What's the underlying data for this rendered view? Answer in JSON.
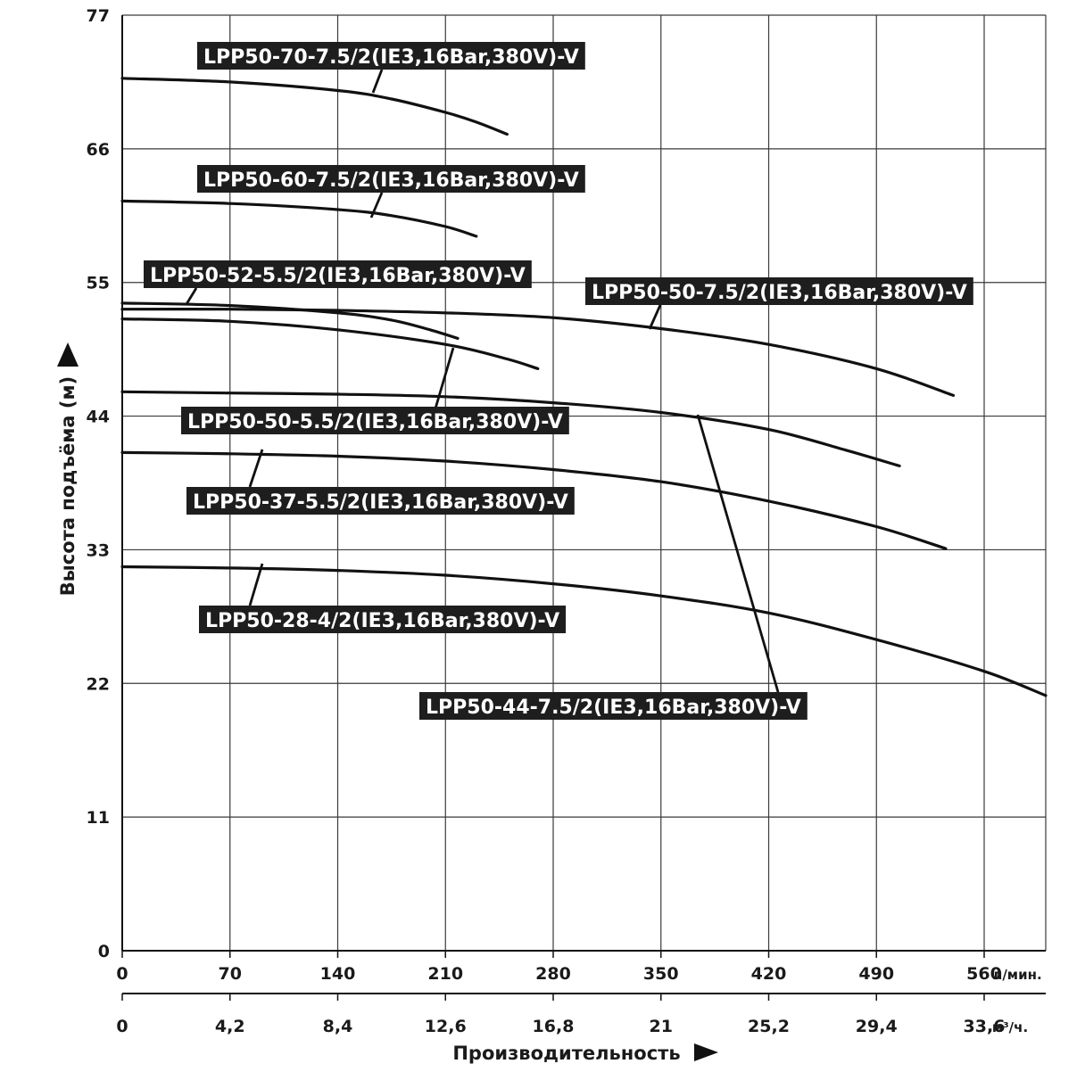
{
  "chart_data": {
    "type": "line",
    "title": "",
    "ylabel": "Высота подъёма (м)",
    "xlabel": "Производительность",
    "ylim": [
      0,
      77
    ],
    "xlim": [
      0,
      600
    ],
    "y_ticks": [
      "0",
      "11",
      "22",
      "33",
      "44",
      "55",
      "66",
      "77"
    ],
    "x_ticks_lmin": [
      "0",
      "70",
      "140",
      "210",
      "280",
      "350",
      "420",
      "490",
      "560"
    ],
    "x_unit_lmin": "л/мин.",
    "x_ticks_m3h": [
      "0",
      "4,2",
      "8,4",
      "12,6",
      "16,8",
      "21",
      "25,2",
      "29,4",
      "33,6"
    ],
    "x_unit_m3h": "м³/ч.",
    "grid": true,
    "series": [
      {
        "name": "LPP50-70-7.5/2(IE3,16Bar,380V)-V",
        "x": [
          0,
          70,
          140,
          175,
          210,
          230,
          250
        ],
        "y": [
          71.8,
          71.5,
          70.8,
          70.1,
          69.0,
          68.2,
          67.2
        ]
      },
      {
        "name": "LPP50-60-7.5/2(IE3,16Bar,380V)-V",
        "x": [
          0,
          70,
          140,
          175,
          210,
          230
        ],
        "y": [
          61.7,
          61.5,
          61.0,
          60.5,
          59.6,
          58.8
        ]
      },
      {
        "name": "LPP50-52-5.5/2(IE3,16Bar,380V)-V",
        "x": [
          0,
          70,
          140,
          175,
          200,
          218
        ],
        "y": [
          53.3,
          53.1,
          52.5,
          51.9,
          51.1,
          50.4
        ]
      },
      {
        "name": "LPP50-50-7.5/2(IE3,16Bar,380V)-V",
        "x": [
          0,
          70,
          140,
          210,
          280,
          350,
          420,
          490,
          540
        ],
        "y": [
          52.8,
          52.8,
          52.7,
          52.5,
          52.1,
          51.2,
          49.9,
          47.9,
          45.7
        ]
      },
      {
        "name": "LPP50-50-5.5/2(IE3,16Bar,380V)-V",
        "x": [
          0,
          70,
          140,
          210,
          250,
          270
        ],
        "y": [
          52.0,
          51.8,
          51.1,
          49.9,
          48.7,
          47.9
        ]
      },
      {
        "name": "LPP50-44-7.5/2(IE3,16Bar,380V)-V",
        "x": [
          0,
          70,
          140,
          210,
          280,
          350,
          420,
          470,
          505
        ],
        "y": [
          46.0,
          45.9,
          45.8,
          45.6,
          45.1,
          44.3,
          42.9,
          41.2,
          39.9
        ]
      },
      {
        "name": "LPP50-37-5.5/2(IE3,16Bar,380V)-V",
        "x": [
          0,
          70,
          140,
          210,
          280,
          350,
          420,
          490,
          535
        ],
        "y": [
          41.0,
          40.9,
          40.7,
          40.3,
          39.6,
          38.6,
          37.0,
          34.9,
          33.1
        ]
      },
      {
        "name": "LPP50-28-4/2(IE3,16Bar,380V)-V",
        "x": [
          0,
          70,
          140,
          210,
          280,
          350,
          420,
          490,
          560,
          600
        ],
        "y": [
          31.6,
          31.5,
          31.3,
          30.9,
          30.2,
          29.2,
          27.8,
          25.6,
          23.0,
          21.0
        ]
      }
    ]
  }
}
